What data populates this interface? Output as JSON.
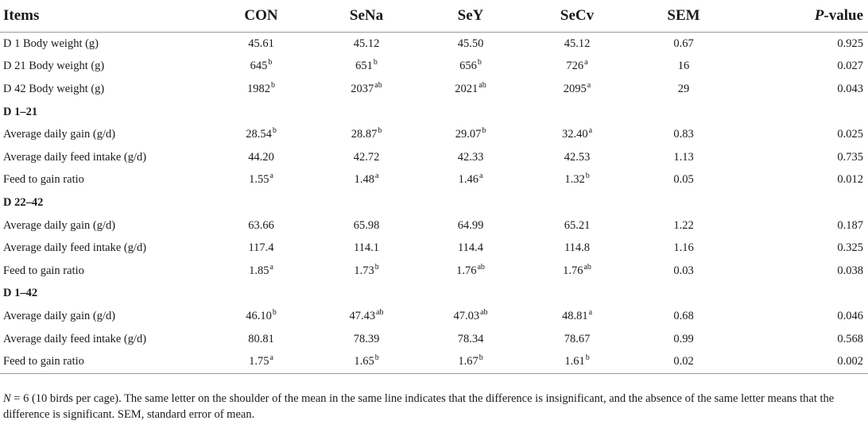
{
  "table": {
    "headers": [
      "Items",
      "CON",
      "SeNa",
      "SeY",
      "SeCv",
      "SEM",
      "P-value"
    ],
    "header_pvalue_italic": "P",
    "header_pvalue_rest": "-value",
    "rows": [
      {
        "type": "data",
        "label": "D 1 Body weight (g)",
        "values": [
          {
            "v": "45.61",
            "s": ""
          },
          {
            "v": "45.12",
            "s": ""
          },
          {
            "v": "45.50",
            "s": ""
          },
          {
            "v": "45.12",
            "s": ""
          }
        ],
        "sem": "0.67",
        "p": "0.925"
      },
      {
        "type": "data",
        "label": "D 21 Body weight (g)",
        "values": [
          {
            "v": "645",
            "s": "b"
          },
          {
            "v": "651",
            "s": "b"
          },
          {
            "v": "656",
            "s": "b"
          },
          {
            "v": "726",
            "s": "a"
          }
        ],
        "sem": "16",
        "p": "0.027"
      },
      {
        "type": "data",
        "label": "D 42 Body weight (g)",
        "values": [
          {
            "v": "1982",
            "s": "b"
          },
          {
            "v": "2037",
            "s": "ab"
          },
          {
            "v": "2021",
            "s": "ab"
          },
          {
            "v": "2095",
            "s": "a"
          }
        ],
        "sem": "29",
        "p": "0.043"
      },
      {
        "type": "section",
        "label": "D 1–21"
      },
      {
        "type": "data",
        "label": "Average daily gain (g/d)",
        "values": [
          {
            "v": "28.54",
            "s": "b"
          },
          {
            "v": "28.87",
            "s": "b"
          },
          {
            "v": "29.07",
            "s": "b"
          },
          {
            "v": "32.40",
            "s": "a"
          }
        ],
        "sem": "0.83",
        "p": "0.025"
      },
      {
        "type": "data",
        "label": "Average daily feed intake (g/d)",
        "values": [
          {
            "v": "44.20",
            "s": ""
          },
          {
            "v": "42.72",
            "s": ""
          },
          {
            "v": "42.33",
            "s": ""
          },
          {
            "v": "42.53",
            "s": ""
          }
        ],
        "sem": "1.13",
        "p": "0.735"
      },
      {
        "type": "data",
        "label": "Feed to gain ratio",
        "values": [
          {
            "v": "1.55",
            "s": "a"
          },
          {
            "v": "1.48",
            "s": "a"
          },
          {
            "v": "1.46",
            "s": "a"
          },
          {
            "v": "1.32",
            "s": "b"
          }
        ],
        "sem": "0.05",
        "p": "0.012"
      },
      {
        "type": "section",
        "label": "D 22–42"
      },
      {
        "type": "data",
        "label": "Average daily gain (g/d)",
        "values": [
          {
            "v": "63.66",
            "s": ""
          },
          {
            "v": "65.98",
            "s": ""
          },
          {
            "v": "64.99",
            "s": ""
          },
          {
            "v": "65.21",
            "s": ""
          }
        ],
        "sem": "1.22",
        "p": "0.187"
      },
      {
        "type": "data",
        "label": "Average daily feed intake (g/d)",
        "values": [
          {
            "v": "117.4",
            "s": ""
          },
          {
            "v": "114.1",
            "s": ""
          },
          {
            "v": "114.4",
            "s": ""
          },
          {
            "v": "114.8",
            "s": ""
          }
        ],
        "sem": "1.16",
        "p": "0.325"
      },
      {
        "type": "data",
        "label": "Feed to gain ratio",
        "values": [
          {
            "v": "1.85",
            "s": "a"
          },
          {
            "v": "1.73",
            "s": "b"
          },
          {
            "v": "1.76",
            "s": "ab"
          },
          {
            "v": "1.76",
            "s": "ab"
          }
        ],
        "sem": "0.03",
        "p": "0.038"
      },
      {
        "type": "section",
        "label": "D 1–42"
      },
      {
        "type": "data",
        "label": "Average daily gain (g/d)",
        "values": [
          {
            "v": "46.10",
            "s": "b"
          },
          {
            "v": "47.43",
            "s": "ab"
          },
          {
            "v": "47.03",
            "s": "ab"
          },
          {
            "v": "48.81",
            "s": "a"
          }
        ],
        "sem": "0.68",
        "p": "0.046"
      },
      {
        "type": "data",
        "label": "Average daily feed intake (g/d)",
        "values": [
          {
            "v": "80.81",
            "s": ""
          },
          {
            "v": "78.39",
            "s": ""
          },
          {
            "v": "78.34",
            "s": ""
          },
          {
            "v": "78.67",
            "s": ""
          }
        ],
        "sem": "0.99",
        "p": "0.568"
      },
      {
        "type": "data",
        "label": "Feed to gain ratio",
        "values": [
          {
            "v": "1.75",
            "s": "a"
          },
          {
            "v": "1.65",
            "s": "b"
          },
          {
            "v": "1.67",
            "s": "b"
          },
          {
            "v": "1.61",
            "s": "b"
          }
        ],
        "sem": "0.02",
        "p": "0.002"
      }
    ]
  },
  "footnote": {
    "n_italic": "N",
    "text": " = 6 (10 birds per cage). The same letter on the shoulder of the mean in the same line indicates that the difference is insignificant, and the absence of the same letter means that the difference is significant. SEM, standard error of mean."
  }
}
